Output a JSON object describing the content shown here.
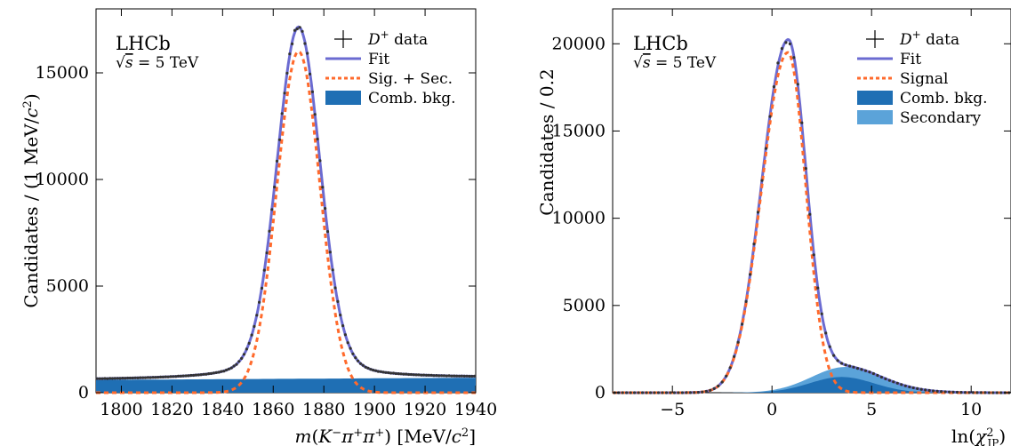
{
  "chart_data": [
    {
      "type": "line",
      "experiment": "LHCb",
      "energy_label": "√s = 5 TeV",
      "xlabel": "m(K⁻π⁺π⁺) [MeV/c²]",
      "ylabel": "Candidates / (1 MeV/c²)",
      "xlim": [
        1790,
        1940
      ],
      "ylim": [
        0,
        18000
      ],
      "xticks": [
        1800,
        1820,
        1840,
        1860,
        1880,
        1900,
        1920,
        1940
      ],
      "yticks": [
        0,
        5000,
        10000,
        15000
      ],
      "legend_position": "top-right",
      "legend": [
        {
          "label": "D⁺ data",
          "style": "data"
        },
        {
          "label": "Fit",
          "style": "solid",
          "color": "#6b6bd1"
        },
        {
          "label": "Sig. + Sec.",
          "style": "dashed",
          "color": "#ff6a2c"
        },
        {
          "label": "Comb. bkg.",
          "style": "fill",
          "color": "#1f6fb4"
        }
      ],
      "signal": {
        "mean": 1870,
        "peak": 16000,
        "sigma": 8.5
      },
      "background": {
        "start": 600,
        "end": 700
      },
      "data_peak": 17200,
      "colors": {
        "fit": "#6b6bd1",
        "signal": "#ff6a2c",
        "comb": "#1f6fb4",
        "data": "#333333"
      }
    },
    {
      "type": "line",
      "experiment": "LHCb",
      "energy_label": "√s = 5 TeV",
      "xlabel": "ln(χ²_IP)",
      "ylabel": "Candidates / 0.2",
      "xlim": [
        -8,
        12
      ],
      "ylim": [
        0,
        22000
      ],
      "xticks": [
        -5,
        0,
        5,
        10
      ],
      "yticks": [
        0,
        5000,
        10000,
        15000,
        20000
      ],
      "legend_position": "top-right",
      "legend": [
        {
          "label": "D⁺ data",
          "style": "data"
        },
        {
          "label": "Fit",
          "style": "solid",
          "color": "#6b6bd1"
        },
        {
          "label": "Signal",
          "style": "dashed",
          "color": "#ff6a2c"
        },
        {
          "label": "Comb. bkg.",
          "style": "fill",
          "color": "#1f6fb4"
        },
        {
          "label": "Secondary",
          "style": "fill",
          "color": "#5ba3d9"
        }
      ],
      "signal": {
        "mode": 0.8,
        "peak": 19500
      },
      "comb": {
        "mean": 3.5,
        "peak": 900
      },
      "secondary": {
        "mean": 4.2,
        "peak": 600
      },
      "data_peak": 20500,
      "colors": {
        "fit": "#6b6bd1",
        "signal": "#ff6a2c",
        "comb": "#1f6fb4",
        "secondary": "#5ba3d9",
        "data": "#333333"
      }
    }
  ]
}
